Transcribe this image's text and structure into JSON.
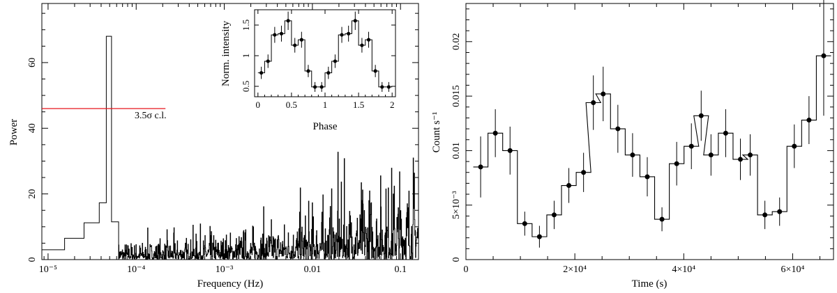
{
  "chart_data": [
    {
      "type": "line",
      "subtype": "step",
      "xscale": "log",
      "xlabel": "Frequency (Hz)",
      "ylabel": "Power",
      "xlim": [
        8.5e-06,
        0.16
      ],
      "ylim": [
        0,
        78
      ],
      "xtick_labels": [
        "10⁻⁵",
        "10⁻⁴",
        "10⁻³",
        "0.01",
        "0.1"
      ],
      "ytick_labels": [
        "0",
        "20",
        "40",
        "60"
      ],
      "low_freq_bins": {
        "edges": [
          8.5e-06,
          1.54e-05,
          2.56e-05,
          3.81e-05,
          4.58e-05,
          5.25e-05,
          6.32e-05
        ],
        "values": [
          3,
          6.5,
          11.2,
          17.3,
          68,
          11.5
        ]
      },
      "noise_model": {
        "min_freq": 6.32e-05,
        "max_freq": 0.16,
        "base_level": 2.2,
        "rising_level": 9.5
      },
      "threshold": {
        "label": "3.5σ c.l.",
        "value": 46,
        "x_start": 8.5e-06,
        "x_end": 0.000215,
        "color": "#e8141c"
      },
      "line_color": "#000000"
    },
    {
      "type": "line",
      "subtype": "step-errorbar",
      "role": "inset",
      "xlabel": "Phase",
      "ylabel": "Norm. intensity",
      "xlim": [
        -0.05,
        2.05
      ],
      "ylim": [
        0.33,
        1.75
      ],
      "xtick_labels": [
        "0",
        "0.5",
        "1",
        "1.5",
        "2"
      ],
      "ytick_labels": [
        "0.5",
        "1",
        "1.5"
      ],
      "x": [
        0.05,
        0.15,
        0.25,
        0.35,
        0.45,
        0.55,
        0.65,
        0.75,
        0.85,
        0.95,
        1.05,
        1.15,
        1.25,
        1.35,
        1.45,
        1.55,
        1.65,
        1.75,
        1.85,
        1.95
      ],
      "y": [
        0.72,
        0.91,
        1.34,
        1.36,
        1.57,
        1.17,
        1.26,
        0.75,
        0.49,
        0.49,
        0.72,
        0.91,
        1.34,
        1.36,
        1.57,
        1.17,
        1.26,
        0.75,
        0.49,
        0.49
      ],
      "yerr": [
        0.1,
        0.11,
        0.13,
        0.13,
        0.15,
        0.12,
        0.13,
        0.1,
        0.08,
        0.08,
        0.1,
        0.11,
        0.13,
        0.13,
        0.15,
        0.12,
        0.13,
        0.1,
        0.08,
        0.08
      ],
      "bin_width": 0.1
    },
    {
      "type": "line",
      "subtype": "step-errorbar",
      "xlabel": "Time (s)",
      "ylabel": "Count s⁻¹",
      "xlim": [
        0,
        67500
      ],
      "ylim": [
        0,
        0.0235
      ],
      "xtick_labels": [
        "0",
        "2×10⁴",
        "4×10⁴",
        "6×10⁴"
      ],
      "ytick_labels": [
        "0",
        "5×10⁻³",
        "0.01",
        "0.015",
        "0.02"
      ],
      "x": [
        2700,
        5400,
        8100,
        10800,
        13500,
        16200,
        18900,
        21600,
        23400,
        25200,
        27900,
        30600,
        33300,
        36000,
        38700,
        41400,
        43200,
        45000,
        47700,
        50400,
        52200,
        54900,
        57600,
        60300,
        63000,
        65700
      ],
      "y": [
        0.0085,
        0.0116,
        0.01,
        0.0033,
        0.0021,
        0.0041,
        0.0068,
        0.008,
        0.0144,
        0.0152,
        0.012,
        0.0096,
        0.0076,
        0.0037,
        0.0088,
        0.0104,
        0.0132,
        0.0096,
        0.0116,
        0.0092,
        0.0096,
        0.0041,
        0.0044,
        0.0104,
        0.0128,
        0.0187
      ],
      "yerr": [
        0.0028,
        0.0022,
        0.0022,
        0.0011,
        0.001,
        0.0013,
        0.0016,
        0.0018,
        0.0025,
        0.0025,
        0.0022,
        0.002,
        0.0018,
        0.0011,
        0.002,
        0.0021,
        0.0023,
        0.0019,
        0.0022,
        0.0019,
        0.0019,
        0.0013,
        0.0013,
        0.002,
        0.0022,
        0.0055
      ],
      "xerr": 1350
    }
  ]
}
